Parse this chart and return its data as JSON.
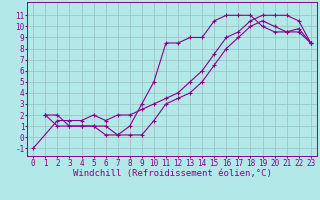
{
  "title": "",
  "xlabel": "Windchill (Refroidissement éolien,°C)",
  "ylabel": "",
  "xlim": [
    -0.5,
    23.5
  ],
  "ylim": [
    -1.7,
    12.2
  ],
  "xticks": [
    0,
    1,
    2,
    3,
    4,
    5,
    6,
    7,
    8,
    9,
    10,
    11,
    12,
    13,
    14,
    15,
    16,
    17,
    18,
    19,
    20,
    21,
    22,
    23
  ],
  "yticks": [
    -1,
    0,
    1,
    2,
    3,
    4,
    5,
    6,
    7,
    8,
    9,
    10,
    11
  ],
  "bg_color": "#b2e8e8",
  "line_color": "#8b008b",
  "grid_color": "#9bbfbf",
  "series": [
    {
      "x": [
        1,
        2,
        3,
        4,
        5,
        6,
        7,
        8,
        9,
        10,
        11,
        12,
        13,
        14,
        15,
        16,
        17,
        18,
        19,
        20,
        21,
        22,
        23
      ],
      "y": [
        2,
        2,
        1,
        1,
        1,
        0.2,
        0.2,
        1,
        3,
        5,
        8.5,
        8.5,
        9,
        9,
        10.5,
        11,
        11,
        11,
        10,
        9.5,
        9.5,
        9.5,
        8.5
      ]
    },
    {
      "x": [
        1,
        2,
        3,
        4,
        5,
        6,
        7,
        8,
        9,
        10,
        11,
        12,
        13,
        14,
        15,
        16,
        17,
        18,
        19,
        20,
        21,
        22,
        23
      ],
      "y": [
        2,
        1,
        1,
        1,
        1,
        1,
        0.2,
        0.2,
        0.2,
        1.5,
        3,
        3.5,
        4,
        5,
        6.5,
        8,
        9,
        10,
        10.5,
        10,
        9.5,
        9.8,
        8.5
      ]
    },
    {
      "x": [
        0,
        2,
        3,
        4,
        5,
        6,
        7,
        8,
        9,
        10,
        11,
        12,
        13,
        14,
        15,
        16,
        17,
        18,
        19,
        20,
        21,
        22,
        23
      ],
      "y": [
        -1,
        1.5,
        1.5,
        1.5,
        2,
        1.5,
        2,
        2,
        2.5,
        3,
        3.5,
        4,
        5,
        6,
        7.5,
        9,
        9.5,
        10.5,
        11,
        11,
        11,
        10.5,
        8.5
      ]
    }
  ],
  "font_family": "monospace",
  "tick_fontsize": 5.5,
  "label_fontsize": 6.5
}
